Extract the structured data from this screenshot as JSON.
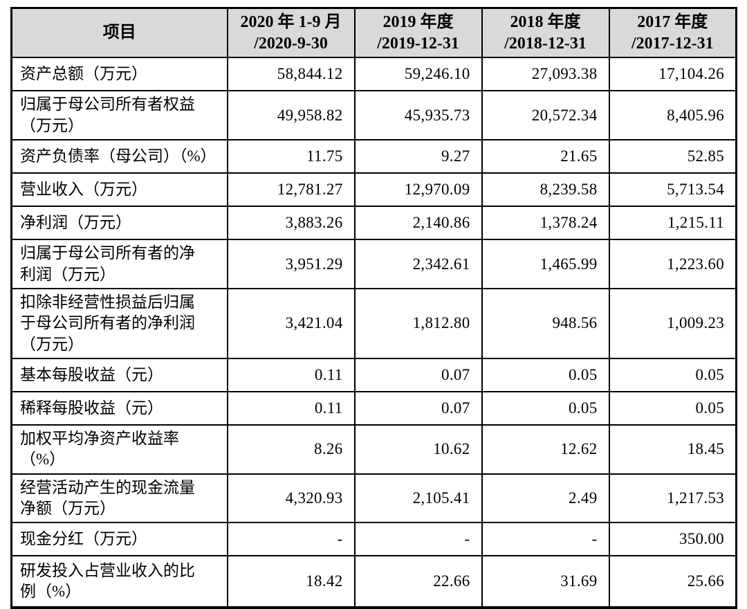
{
  "table": {
    "header": {
      "item_label": "项目",
      "columns": [
        {
          "line1": "2020 年 1-9 月",
          "line2": "/2020-9-30"
        },
        {
          "line1": "2019 年度",
          "line2": "/2019-12-31"
        },
        {
          "line1": "2018 年度",
          "line2": "/2018-12-31"
        },
        {
          "line1": "2017 年度",
          "line2": "/2017-12-31"
        }
      ]
    },
    "rows": [
      {
        "label": "资产总额（万元）",
        "values": [
          "58,844.12",
          "59,246.10",
          "27,093.38",
          "17,104.26"
        ]
      },
      {
        "label": "归属于母公司所有者权益\n（万元）",
        "values": [
          "49,958.82",
          "45,935.73",
          "20,572.34",
          "8,405.96"
        ]
      },
      {
        "label": "资产负债率（母公司）（%）",
        "values": [
          "11.75",
          "9.27",
          "21.65",
          "52.85"
        ]
      },
      {
        "label": "营业收入（万元）",
        "values": [
          "12,781.27",
          "12,970.09",
          "8,239.58",
          "5,713.54"
        ]
      },
      {
        "label": "净利润（万元）",
        "values": [
          "3,883.26",
          "2,140.86",
          "1,378.24",
          "1,215.11"
        ]
      },
      {
        "label": "归属于母公司所有者的净\n利润（万元）",
        "values": [
          "3,951.29",
          "2,342.61",
          "1,465.99",
          "1,223.60"
        ]
      },
      {
        "label": "扣除非经营性损益后归属\n于母公司所有者的净利润\n（万元）",
        "values": [
          "3,421.04",
          "1,812.80",
          "948.56",
          "1,009.23"
        ]
      },
      {
        "label": "基本每股收益（元）",
        "values": [
          "0.11",
          "0.07",
          "0.05",
          "0.05"
        ]
      },
      {
        "label": "稀释每股收益（元）",
        "values": [
          "0.11",
          "0.07",
          "0.05",
          "0.05"
        ]
      },
      {
        "label": "加权平均净资产收益率\n（%）",
        "values": [
          "8.26",
          "10.62",
          "12.62",
          "18.45"
        ]
      },
      {
        "label": "经营活动产生的现金流量\n净额（万元）",
        "values": [
          "4,320.93",
          "2,105.41",
          "2.49",
          "1,217.53"
        ]
      },
      {
        "label": "现金分红（万元）",
        "values": [
          "-",
          "-",
          "-",
          "350.00"
        ]
      },
      {
        "label": "研发投入占营业收入的比\n例（%）",
        "values": [
          "18.42",
          "22.66",
          "31.69",
          "25.66"
        ]
      }
    ],
    "colors": {
      "header_bg": "#d9d9d9",
      "border": "#000000",
      "page_bg": "#ffffff"
    }
  }
}
